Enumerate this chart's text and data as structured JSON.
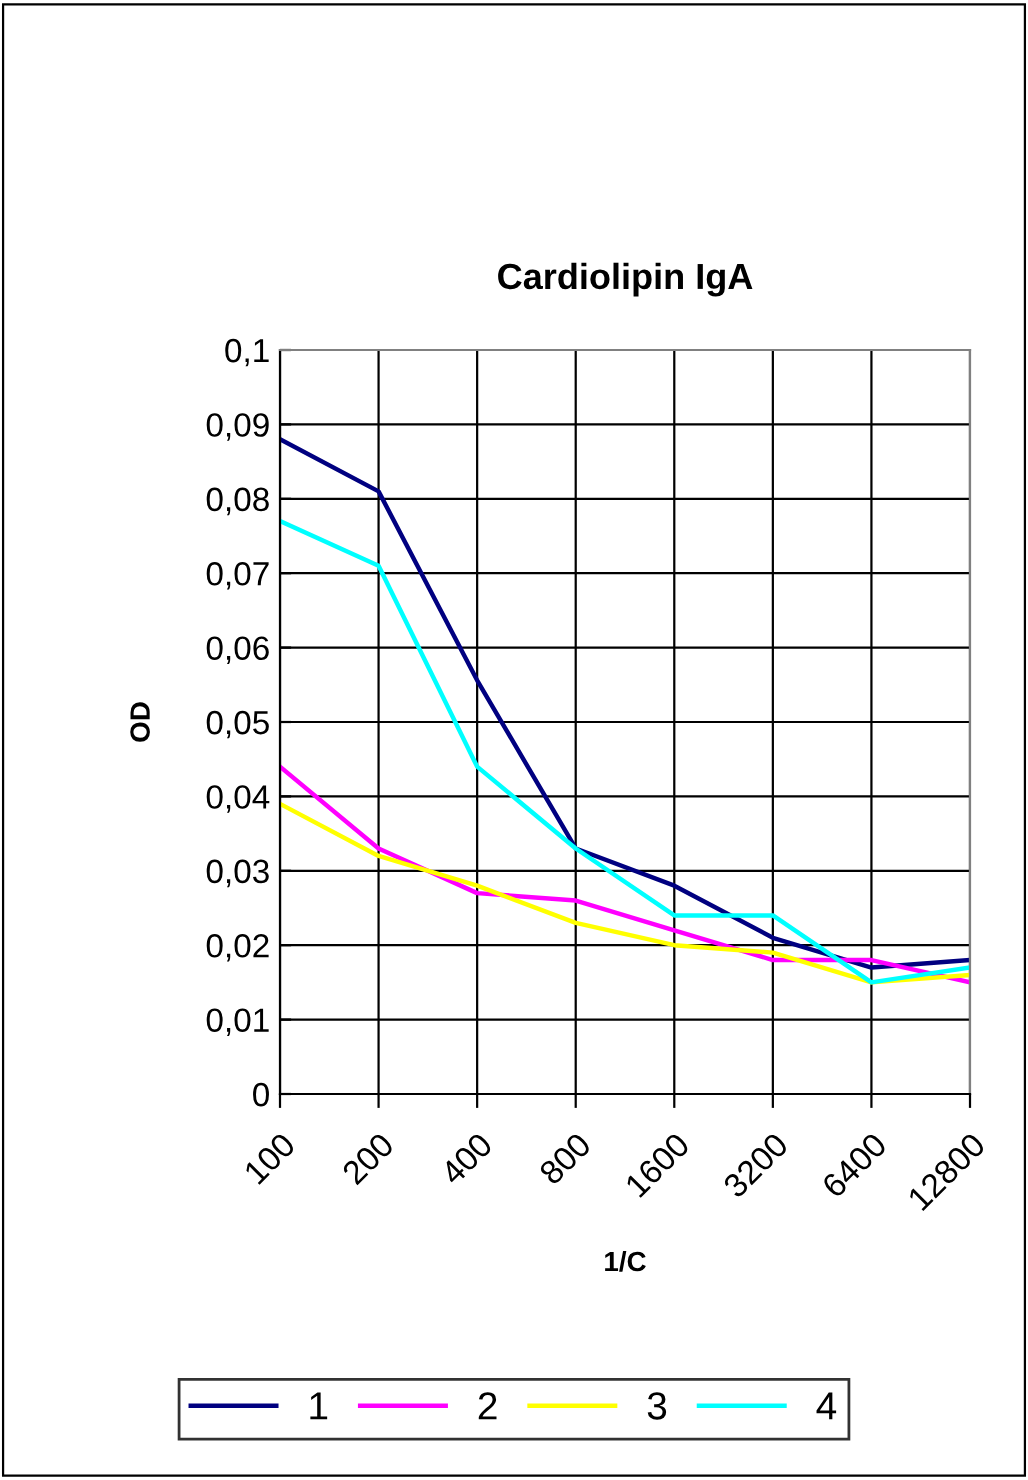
{
  "chart_data": {
    "type": "line",
    "title": "Cardiolipin IgA",
    "xlabel": "1/C",
    "ylabel": "OD",
    "categories": [
      "100",
      "200",
      "400",
      "800",
      "1600",
      "3200",
      "6400",
      "12800"
    ],
    "series": [
      {
        "name": "1",
        "color": "#000080",
        "values": [
          0.088,
          0.081,
          0.0556,
          0.033,
          0.028,
          0.021,
          0.017,
          0.018
        ]
      },
      {
        "name": "2",
        "color": "#ff00ff",
        "values": [
          0.044,
          0.033,
          0.027,
          0.026,
          0.022,
          0.018,
          0.018,
          0.015
        ]
      },
      {
        "name": "3",
        "color": "#ffff00",
        "values": [
          0.039,
          0.032,
          0.028,
          0.023,
          0.02,
          0.019,
          0.015,
          0.016
        ]
      },
      {
        "name": "4",
        "color": "#00ffff",
        "values": [
          0.077,
          0.071,
          0.044,
          0.033,
          0.024,
          0.024,
          0.015,
          0.017
        ]
      }
    ],
    "ylim": [
      0,
      0.1
    ],
    "yticks": [
      {
        "value": 0,
        "label": "0"
      },
      {
        "value": 0.01,
        "label": "0,01"
      },
      {
        "value": 0.02,
        "label": "0,02"
      },
      {
        "value": 0.03,
        "label": "0,03"
      },
      {
        "value": 0.04,
        "label": "0,04"
      },
      {
        "value": 0.05,
        "label": "0,05"
      },
      {
        "value": 0.06,
        "label": "0,06"
      },
      {
        "value": 0.07,
        "label": "0,07"
      },
      {
        "value": 0.08,
        "label": "0,08"
      },
      {
        "value": 0.09,
        "label": "0,09"
      },
      {
        "value": 0.1,
        "label": "0,1"
      }
    ],
    "grid": true,
    "legend": "bottom",
    "marker": "none",
    "line_style": "solid"
  }
}
